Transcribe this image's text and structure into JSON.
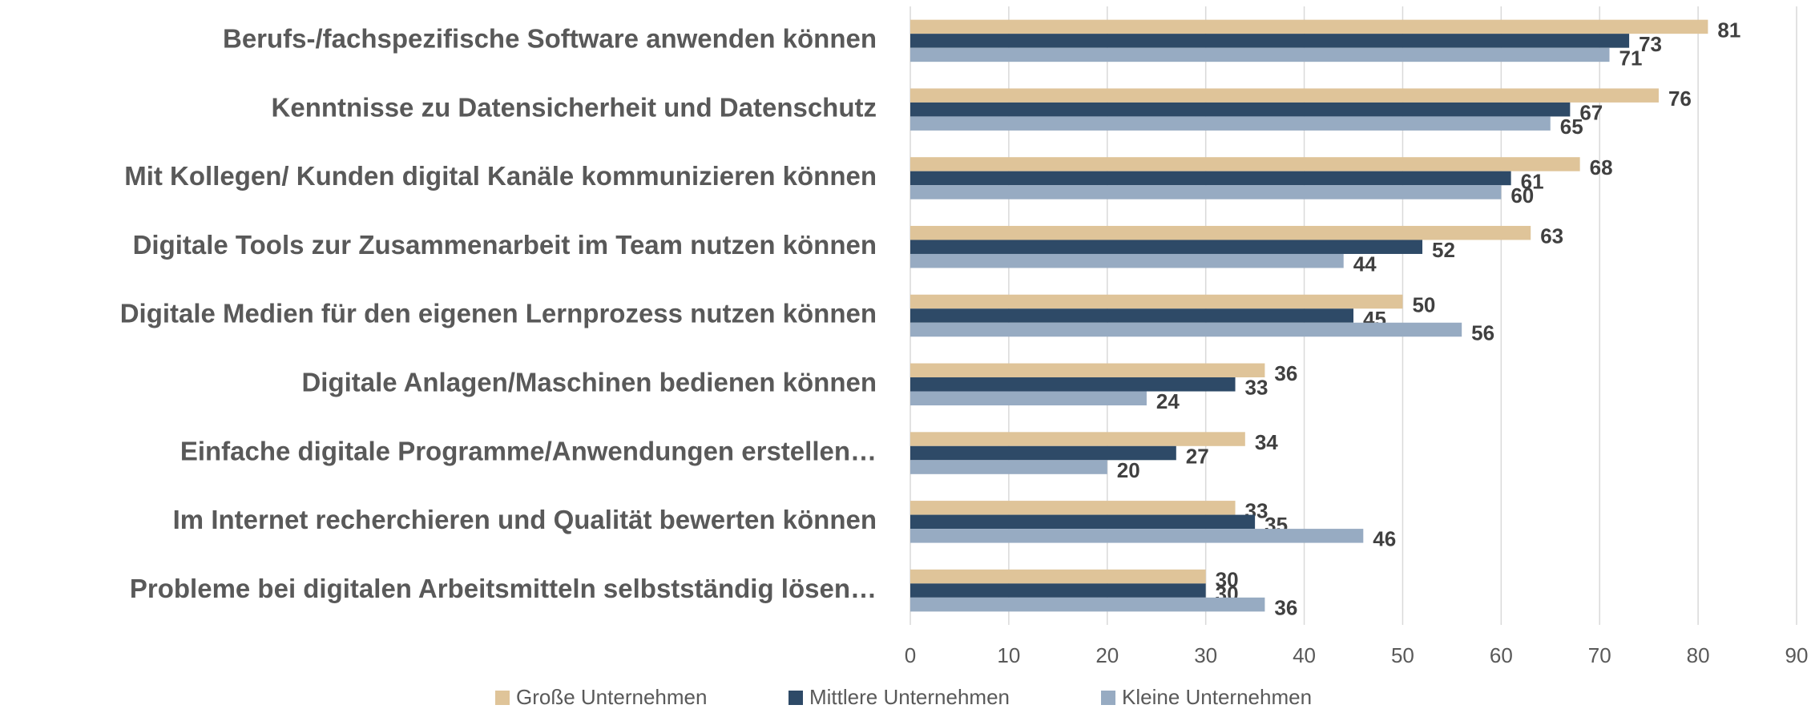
{
  "chart_data": {
    "type": "bar",
    "orientation": "horizontal",
    "categories": [
      "Berufs-/fachspezifische Software anwenden können",
      "Kenntnisse zu Datensicherheit und Datenschutz",
      "Mit Kollegen/ Kunden digital Kanäle kommunizieren können",
      "Digitale Tools zur Zusammenarbeit im Team nutzen können",
      "Digitale Medien für den eigenen Lernprozess nutzen können",
      "Digitale Anlagen/Maschinen bedienen können",
      "Einfache digitale Programme/Anwendungen erstellen…",
      "Im Internet recherchieren und Qualität  bewerten können",
      "Probleme bei digitalen Arbeitsmitteln selbstständig lösen…"
    ],
    "series": [
      {
        "name": "Große Unternehmen",
        "color": "#dfc499",
        "values": [
          81,
          76,
          68,
          63,
          50,
          36,
          34,
          33,
          30
        ]
      },
      {
        "name": "Mittlere Unternehmen",
        "color": "#2e4a67",
        "values": [
          73,
          67,
          61,
          52,
          45,
          33,
          27,
          35,
          30
        ]
      },
      {
        "name": "Kleine Unternehmen",
        "color": "#97abc2",
        "values": [
          71,
          65,
          60,
          44,
          56,
          24,
          20,
          46,
          36
        ]
      }
    ],
    "xlim": [
      0,
      90
    ],
    "xticks": [
      0,
      10,
      20,
      30,
      40,
      50,
      60,
      70,
      80,
      90
    ],
    "grid": true,
    "legend": "bottom"
  }
}
